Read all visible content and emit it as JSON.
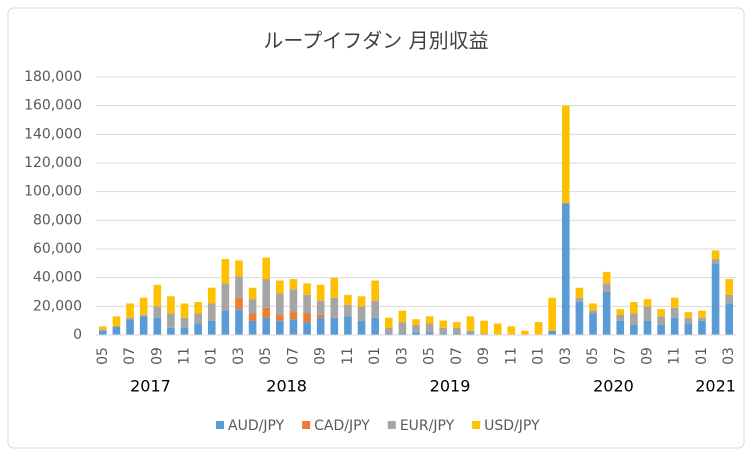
{
  "chart_data": {
    "type": "stacked_bar",
    "title": "ループイフダン 月別収益",
    "categories": [
      "05",
      null,
      "07",
      null,
      "09",
      null,
      "11",
      null,
      "01",
      null,
      "03",
      null,
      "05",
      null,
      "07",
      null,
      "09",
      null,
      "11",
      null,
      "01",
      null,
      "03",
      null,
      "05",
      null,
      "07",
      null,
      "09",
      null,
      "11",
      null,
      "01",
      null,
      "03",
      null,
      "05",
      null,
      "07",
      null,
      "09",
      null,
      "11",
      null,
      "01",
      null,
      "03"
    ],
    "years": [
      "2017",
      "2018",
      "2019",
      "2020",
      "2021"
    ],
    "series": [
      {
        "name": "AUD/JPY",
        "color": "#5b9bd5",
        "values": [
          3000,
          6000,
          11000,
          13000,
          12000,
          5000,
          5000,
          8000,
          10000,
          17000,
          18000,
          10000,
          12000,
          10000,
          11000,
          9000,
          12000,
          12000,
          13000,
          10000,
          12000,
          1000,
          1000,
          2000,
          2000,
          1000,
          1000,
          1000,
          0,
          0,
          0,
          0,
          0,
          3000,
          92000,
          23000,
          15000,
          30000,
          10000,
          7000,
          10000,
          7000,
          12000,
          8000,
          10000,
          50000,
          22000
        ]
      },
      {
        "name": "CAD/JPY",
        "color": "#ed7d31",
        "values": [
          0,
          0,
          0,
          0,
          0,
          0,
          0,
          0,
          0,
          0,
          8000,
          5000,
          7000,
          4000,
          5000,
          6000,
          2000,
          0,
          0,
          0,
          0,
          0,
          0,
          0,
          0,
          0,
          0,
          0,
          0,
          0,
          0,
          0,
          0,
          0,
          0,
          0,
          0,
          0,
          0,
          0,
          0,
          0,
          0,
          0,
          0,
          0,
          0
        ]
      },
      {
        "name": "EUR/JPY",
        "color": "#a5a5a5",
        "values": [
          1000,
          0,
          1000,
          1000,
          8000,
          10000,
          7000,
          7000,
          12000,
          19000,
          15000,
          10000,
          20000,
          15000,
          16000,
          13000,
          10000,
          14000,
          8000,
          10000,
          12000,
          4000,
          8000,
          5000,
          6000,
          4000,
          4000,
          2000,
          1000,
          0,
          0,
          0,
          0,
          0,
          0,
          3000,
          2000,
          6000,
          4000,
          8000,
          10000,
          6000,
          7000,
          4000,
          2000,
          3000,
          6000
        ]
      },
      {
        "name": "USD/JPY",
        "color": "#ffc000",
        "values": [
          2000,
          7000,
          10000,
          12000,
          15000,
          12000,
          10000,
          8000,
          11000,
          17000,
          11000,
          8000,
          15000,
          9000,
          7000,
          8000,
          11000,
          14000,
          7000,
          7000,
          14000,
          7000,
          8000,
          4000,
          5000,
          5000,
          4000,
          10000,
          9000,
          8000,
          6000,
          3000,
          9000,
          23000,
          68000,
          7000,
          5000,
          8000,
          4000,
          8000,
          5000,
          5000,
          7000,
          4000,
          5000,
          6000,
          11000
        ]
      }
    ],
    "ylim": [
      0,
      180000
    ],
    "yticks": [
      0,
      {
        "value": 20000,
        "label": "20,000"
      },
      {
        "value": 40000,
        "label": "40,000"
      },
      {
        "value": 60000,
        "label": "60,000"
      },
      {
        "value": 80000,
        "label": "80,000"
      },
      {
        "value": 100000,
        "label": "100,000"
      },
      {
        "value": 120000,
        "label": "120,000"
      },
      {
        "value": 140000,
        "label": "140,000"
      },
      {
        "value": 160000,
        "label": "160,000"
      },
      {
        "value": 180000,
        "label": "180,000"
      }
    ],
    "grid": true,
    "legend": "bottom"
  }
}
